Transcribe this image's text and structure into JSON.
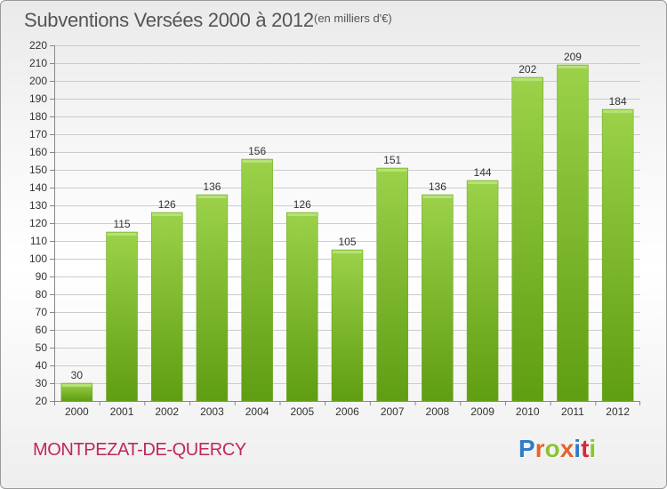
{
  "header": {
    "title": "Subventions Versées 2000 à 2012",
    "subtitle": "(en milliers d'€)"
  },
  "footer": {
    "commune": "MONTPEZAT-DE-QUERCY",
    "logo_text": "Proxiti",
    "logo_colors": [
      "#2e7cc9",
      "#e5642b",
      "#8cc42f",
      "#e5642b",
      "#2e7cc9",
      "#d12a3a",
      "#8cc42f"
    ]
  },
  "colors": {
    "bar_top": "#9bd24a",
    "bar_bottom": "#5f9d12",
    "grid": "#cccccc",
    "text": "#333333"
  },
  "chart_data": {
    "type": "bar",
    "categories": [
      "2000",
      "2001",
      "2002",
      "2003",
      "2004",
      "2005",
      "2006",
      "2007",
      "2008",
      "2009",
      "2010",
      "2011",
      "2012"
    ],
    "values": [
      30,
      115,
      126,
      136,
      156,
      126,
      105,
      151,
      136,
      144,
      202,
      209,
      184
    ],
    "ylim": [
      20,
      220
    ],
    "ytick_step": 10,
    "data_labels": true,
    "grid": true,
    "xlabel": "",
    "ylabel": ""
  }
}
